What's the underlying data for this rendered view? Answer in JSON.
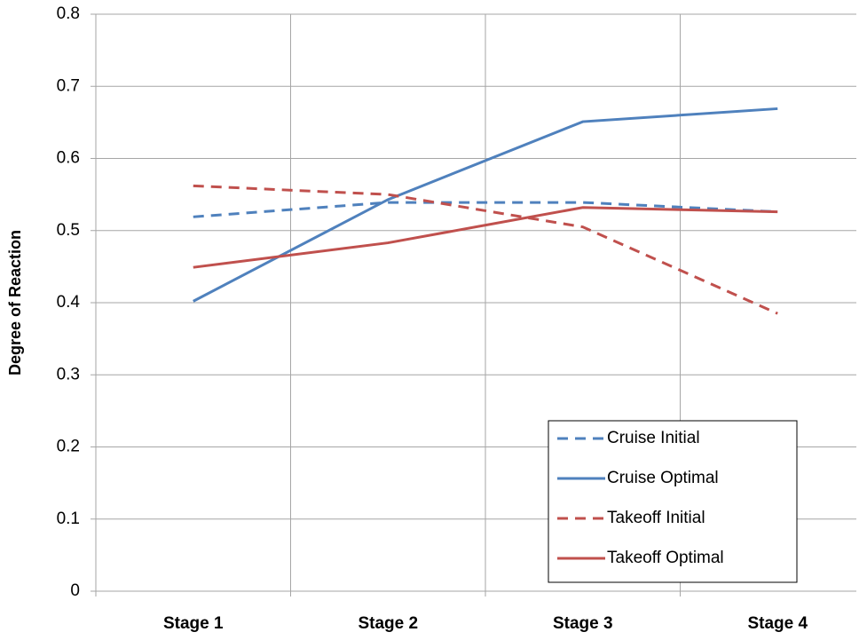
{
  "chart_data": {
    "type": "line",
    "y_label": "Degree of Reaction",
    "categories": [
      "Stage 1",
      "Stage 2",
      "Stage 3",
      "Stage 4"
    ],
    "series": [
      {
        "name": "Cruise Initial",
        "color": "#4f81bd",
        "dashed": true,
        "values": [
          0.519,
          0.539,
          0.539,
          0.526
        ]
      },
      {
        "name": "Cruise Optimal",
        "color": "#4f81bd",
        "dashed": false,
        "values": [
          0.402,
          0.543,
          0.651,
          0.669
        ]
      },
      {
        "name": "Takeoff Initial",
        "color": "#c0504d",
        "dashed": true,
        "values": [
          0.562,
          0.55,
          0.505,
          0.385
        ]
      },
      {
        "name": "Takeoff Optimal",
        "color": "#c0504d",
        "dashed": false,
        "values": [
          0.449,
          0.483,
          0.532,
          0.526
        ]
      }
    ],
    "ylim": [
      0,
      0.8
    ],
    "yticks": [
      0,
      0.1,
      0.2,
      0.3,
      0.4,
      0.5,
      0.6,
      0.7,
      0.8
    ],
    "grid": true,
    "legend": "lower right"
  }
}
